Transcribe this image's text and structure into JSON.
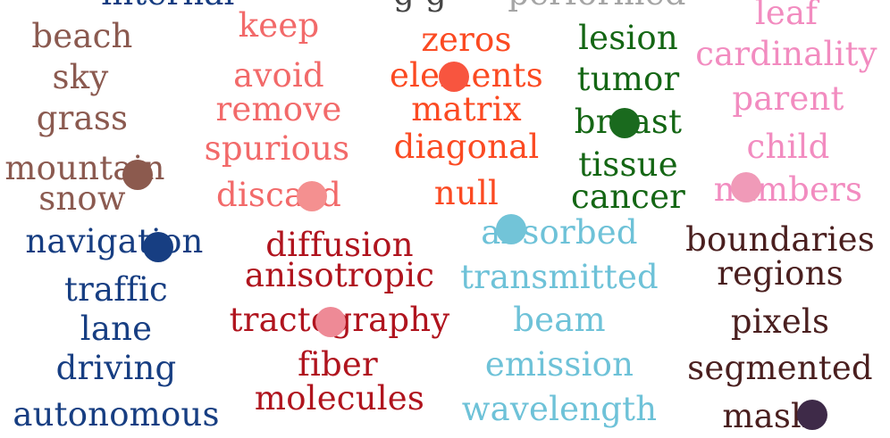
{
  "clusters": [
    {
      "id": "scene",
      "color": "#8b5a50",
      "words": [
        "beach",
        "sky",
        "grass",
        "mountain",
        "snow"
      ],
      "dot_color": "#8c5a4e"
    },
    {
      "id": "sparse",
      "color": "#f26a6a",
      "words": [
        "keep",
        "avoid",
        "remove",
        "spurious",
        "discard"
      ],
      "dot_color": "#f49090"
    },
    {
      "id": "matrix",
      "color": "#fb4a22",
      "words": [
        "zeros",
        "elements",
        "matrix",
        "diagonal",
        "null"
      ],
      "dot_color": "#f8553f"
    },
    {
      "id": "medical",
      "color": "#146614",
      "words": [
        "lesion",
        "tumor",
        "breast",
        "tissue",
        "cancer"
      ],
      "dot_color": "#1a6a1e"
    },
    {
      "id": "tree",
      "color": "#f28cc0",
      "words": [
        "leaf",
        "cardinality",
        "parent",
        "child",
        "numbers"
      ],
      "dot_color": "#f09ab8"
    },
    {
      "id": "driving",
      "color": "#173e82",
      "words": [
        "internal",
        "navigation",
        "traffic",
        "lane",
        "driving",
        "autonomous"
      ],
      "dot_color": "#173e82"
    },
    {
      "id": "diffusion",
      "color": "#b0141e",
      "words": [
        "diffusion",
        "anisotropic",
        "tractography",
        "fiber",
        "molecules"
      ],
      "dot_color": "#ee8a96"
    },
    {
      "id": "optics",
      "color": "#6ec2d8",
      "words": [
        "absorbed",
        "transmitted",
        "beam",
        "emission",
        "wavelength"
      ],
      "dot_color": "#72c4d8"
    },
    {
      "id": "segmentation",
      "color": "#4a1f1f",
      "words": [
        "boundaries",
        "regions",
        "pixels",
        "segmented",
        "mask"
      ],
      "dot_color": "#3e2a48"
    },
    {
      "id": "misc",
      "color": "#9a9a9a",
      "words": [
        "performed"
      ],
      "dot_color": "#9a9a9a"
    }
  ]
}
